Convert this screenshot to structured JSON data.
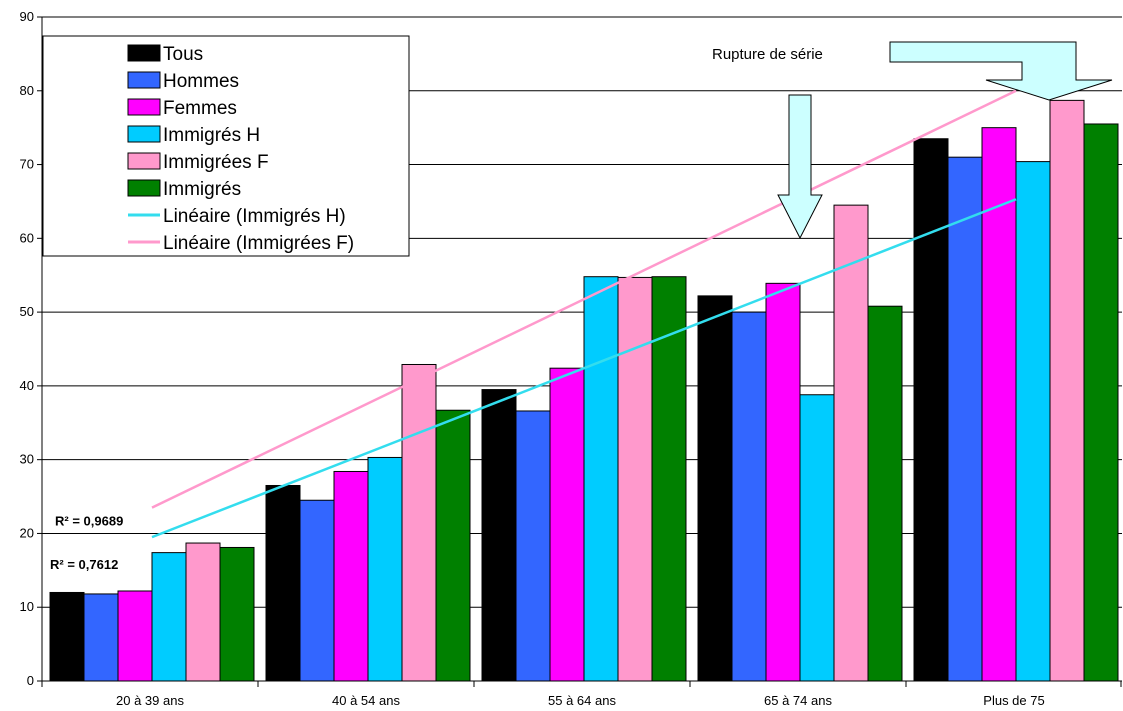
{
  "chart_data": {
    "type": "bar",
    "categories": [
      "20 à 39 ans",
      "40 à 54 ans",
      "55 à 64 ans",
      "65 à 74 ans",
      "Plus de 75"
    ],
    "series": [
      {
        "name": "Tous",
        "color": "#000000",
        "values": [
          12.0,
          26.5,
          39.5,
          52.2,
          73.5
        ]
      },
      {
        "name": "Hommes",
        "color": "#3366FF",
        "values": [
          11.8,
          24.5,
          36.6,
          50.0,
          71.0
        ]
      },
      {
        "name": "Femmes",
        "color": "#FF00FF",
        "values": [
          12.2,
          28.4,
          42.4,
          53.9,
          75.0
        ]
      },
      {
        "name": "Immigrés H",
        "color": "#00CCFF",
        "values": [
          17.4,
          30.3,
          54.8,
          38.8,
          70.4
        ]
      },
      {
        "name": "Immigrées F",
        "color": "#FF99CC",
        "values": [
          18.7,
          42.9,
          54.7,
          64.5,
          78.7
        ]
      },
      {
        "name": "Immigrés",
        "color": "#008000",
        "values": [
          18.1,
          36.7,
          54.8,
          50.8,
          75.5
        ]
      }
    ],
    "trendlines": [
      {
        "name": "Linéaire (Immigrés H)",
        "color": "#33DDEE",
        "start": 19.5,
        "end": 65.3,
        "r2": "R² = 0,7612"
      },
      {
        "name": "Linéaire (Immigrées F)",
        "color": "#FF99CC",
        "start": 23.5,
        "end": 80.0,
        "r2": "R² = 0,9689"
      }
    ],
    "ylim": [
      0,
      90
    ],
    "yticks": [
      "0",
      "10",
      "20",
      "30",
      "40",
      "50",
      "60",
      "70",
      "80",
      "90"
    ],
    "grid": true,
    "legend_position": "top-left",
    "annotations": [
      {
        "text": "Rupture de série"
      }
    ],
    "arrow_fill": "#CCFFFF"
  }
}
